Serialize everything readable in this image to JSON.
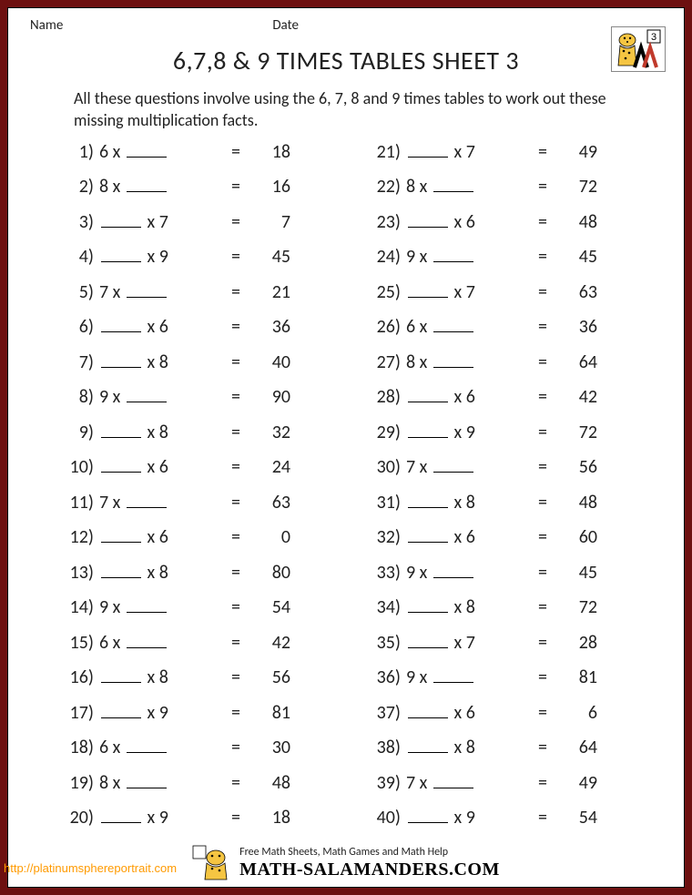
{
  "border_color": "#6d1010",
  "background_color": "#ffffff",
  "text_color": "#222222",
  "font_family": "Calibri, Arial, sans-serif",
  "header": {
    "name_label": "Name",
    "date_label": "Date",
    "label_fontsize": 15
  },
  "logo": {
    "page_number": "3",
    "number_bg": "#ffffff",
    "number_color": "#000000",
    "body_color": "#f5c542",
    "spots_color": "#000000",
    "m_color": "#000000",
    "m_diag_color": "#c0392b"
  },
  "title": {
    "text": "6,7,8 & 9 TIMES TABLES SHEET 3",
    "fontsize": 28,
    "weight": 400
  },
  "instructions": {
    "text": "All these questions involve using the 6, 7, 8 and 9 times tables to work out these missing multiplication facts.",
    "fontsize": 18
  },
  "problems": {
    "fontsize": 20,
    "row_height": 38.5,
    "blank_width": 44,
    "left": [
      {
        "n": "1)",
        "before": "6 x ",
        "after": "",
        "eq": "=",
        "ans": "18",
        "blank": true
      },
      {
        "n": "2)",
        "before": "8 x ",
        "after": "",
        "eq": "=",
        "ans": "16",
        "blank": true
      },
      {
        "n": "3)",
        "before": "",
        "after": " x 7",
        "eq": "=",
        "ans": "7",
        "blank": true
      },
      {
        "n": "4)",
        "before": "",
        "after": " x 9",
        "eq": "=",
        "ans": "45",
        "blank": true
      },
      {
        "n": "5)",
        "before": "7 x ",
        "after": "",
        "eq": "=",
        "ans": "21",
        "blank": true
      },
      {
        "n": "6)",
        "before": "",
        "after": " x 6",
        "eq": "=",
        "ans": "36",
        "blank": true
      },
      {
        "n": "7)",
        "before": "",
        "after": " x 8",
        "eq": "=",
        "ans": "40",
        "blank": true
      },
      {
        "n": "8)",
        "before": "9 x ",
        "after": "",
        "eq": "=",
        "ans": "90",
        "blank": true
      },
      {
        "n": "9)",
        "before": "",
        "after": " x 8",
        "eq": "=",
        "ans": "32",
        "blank": true
      },
      {
        "n": "10)",
        "before": "",
        "after": " x 6",
        "eq": "=",
        "ans": "24",
        "blank": true
      },
      {
        "n": "11)",
        "before": "7 x ",
        "after": "",
        "eq": "=",
        "ans": "63",
        "blank": true
      },
      {
        "n": "12)",
        "before": "",
        "after": " x 6",
        "eq": "=",
        "ans": "0",
        "blank": true
      },
      {
        "n": "13)",
        "before": "",
        "after": " x 8",
        "eq": "=",
        "ans": "80",
        "blank": true
      },
      {
        "n": "14)",
        "before": "9 x ",
        "after": "",
        "eq": "=",
        "ans": "54",
        "blank": true
      },
      {
        "n": "15)",
        "before": "6 x ",
        "after": "",
        "eq": "=",
        "ans": "42",
        "blank": true
      },
      {
        "n": "16)",
        "before": "",
        "after": " x 8",
        "eq": "=",
        "ans": "56",
        "blank": true
      },
      {
        "n": "17)",
        "before": "",
        "after": " x 9",
        "eq": "=",
        "ans": "81",
        "blank": true
      },
      {
        "n": "18)",
        "before": "6 x ",
        "after": "",
        "eq": "=",
        "ans": "30",
        "blank": true
      },
      {
        "n": "19)",
        "before": "8 x ",
        "after": "",
        "eq": "=",
        "ans": "48",
        "blank": true
      },
      {
        "n": "20)",
        "before": "",
        "after": " x 9",
        "eq": "=",
        "ans": "18",
        "blank": true
      }
    ],
    "right": [
      {
        "n": "21)",
        "before": "",
        "after": " x 7",
        "eq": "=",
        "ans": "49",
        "blank": true
      },
      {
        "n": "22)",
        "before": "8 x ",
        "after": "",
        "eq": "=",
        "ans": "72",
        "blank": true
      },
      {
        "n": "23)",
        "before": "",
        "after": " x 6",
        "eq": "=",
        "ans": "48",
        "blank": true
      },
      {
        "n": "24)",
        "before": "9 x ",
        "after": "",
        "eq": "=",
        "ans": "45",
        "blank": true
      },
      {
        "n": "25)",
        "before": "",
        "after": " x 7",
        "eq": "=",
        "ans": "63",
        "blank": true
      },
      {
        "n": "26)",
        "before": "6 x ",
        "after": "",
        "eq": "=",
        "ans": "36",
        "blank": true
      },
      {
        "n": "27)",
        "before": "8 x ",
        "after": "",
        "eq": "=",
        "ans": "64",
        "blank": true
      },
      {
        "n": "28)",
        "before": "",
        "after": " x 6",
        "eq": "=",
        "ans": "42",
        "blank": true
      },
      {
        "n": "29)",
        "before": "",
        "after": " x 9",
        "eq": "=",
        "ans": "72",
        "blank": true
      },
      {
        "n": "30)",
        "before": "7 x ",
        "after": "",
        "eq": "=",
        "ans": "56",
        "blank": true
      },
      {
        "n": "31)",
        "before": "",
        "after": " x 8",
        "eq": "=",
        "ans": "48",
        "blank": true
      },
      {
        "n": "32)",
        "before": "",
        "after": " x 6",
        "eq": "=",
        "ans": "60",
        "blank": true
      },
      {
        "n": "33)",
        "before": "9 x ",
        "after": "",
        "eq": "=",
        "ans": "45",
        "blank": true
      },
      {
        "n": "34)",
        "before": "",
        "after": " x 8",
        "eq": "=",
        "ans": "72",
        "blank": true
      },
      {
        "n": "35)",
        "before": "",
        "after": " x 7",
        "eq": "=",
        "ans": "28",
        "blank": true
      },
      {
        "n": "36)",
        "before": "9 x ",
        "after": "",
        "eq": "=",
        "ans": "81",
        "blank": true
      },
      {
        "n": "37)",
        "before": "",
        "after": " x 6",
        "eq": "=",
        "ans": "6",
        "blank": true
      },
      {
        "n": "38)",
        "before": "",
        "after": " x 8",
        "eq": "=",
        "ans": "64",
        "blank": true
      },
      {
        "n": "39)",
        "before": "7 x ",
        "after": "",
        "eq": "=",
        "ans": "49",
        "blank": true
      },
      {
        "n": "40)",
        "before": "",
        "after": " x 9",
        "eq": "=",
        "ans": "54",
        "blank": true
      }
    ]
  },
  "footer": {
    "tagline": "Free Math Sheets, Math Games and Math Help",
    "brand": "MATH-SALAMANDERS.COM",
    "tagline_fontsize": 12,
    "brand_fontsize": 20
  },
  "watermark": {
    "text": "http://platinumsphereportrait.com",
    "color": "#ff9a00",
    "fontsize": 13
  }
}
